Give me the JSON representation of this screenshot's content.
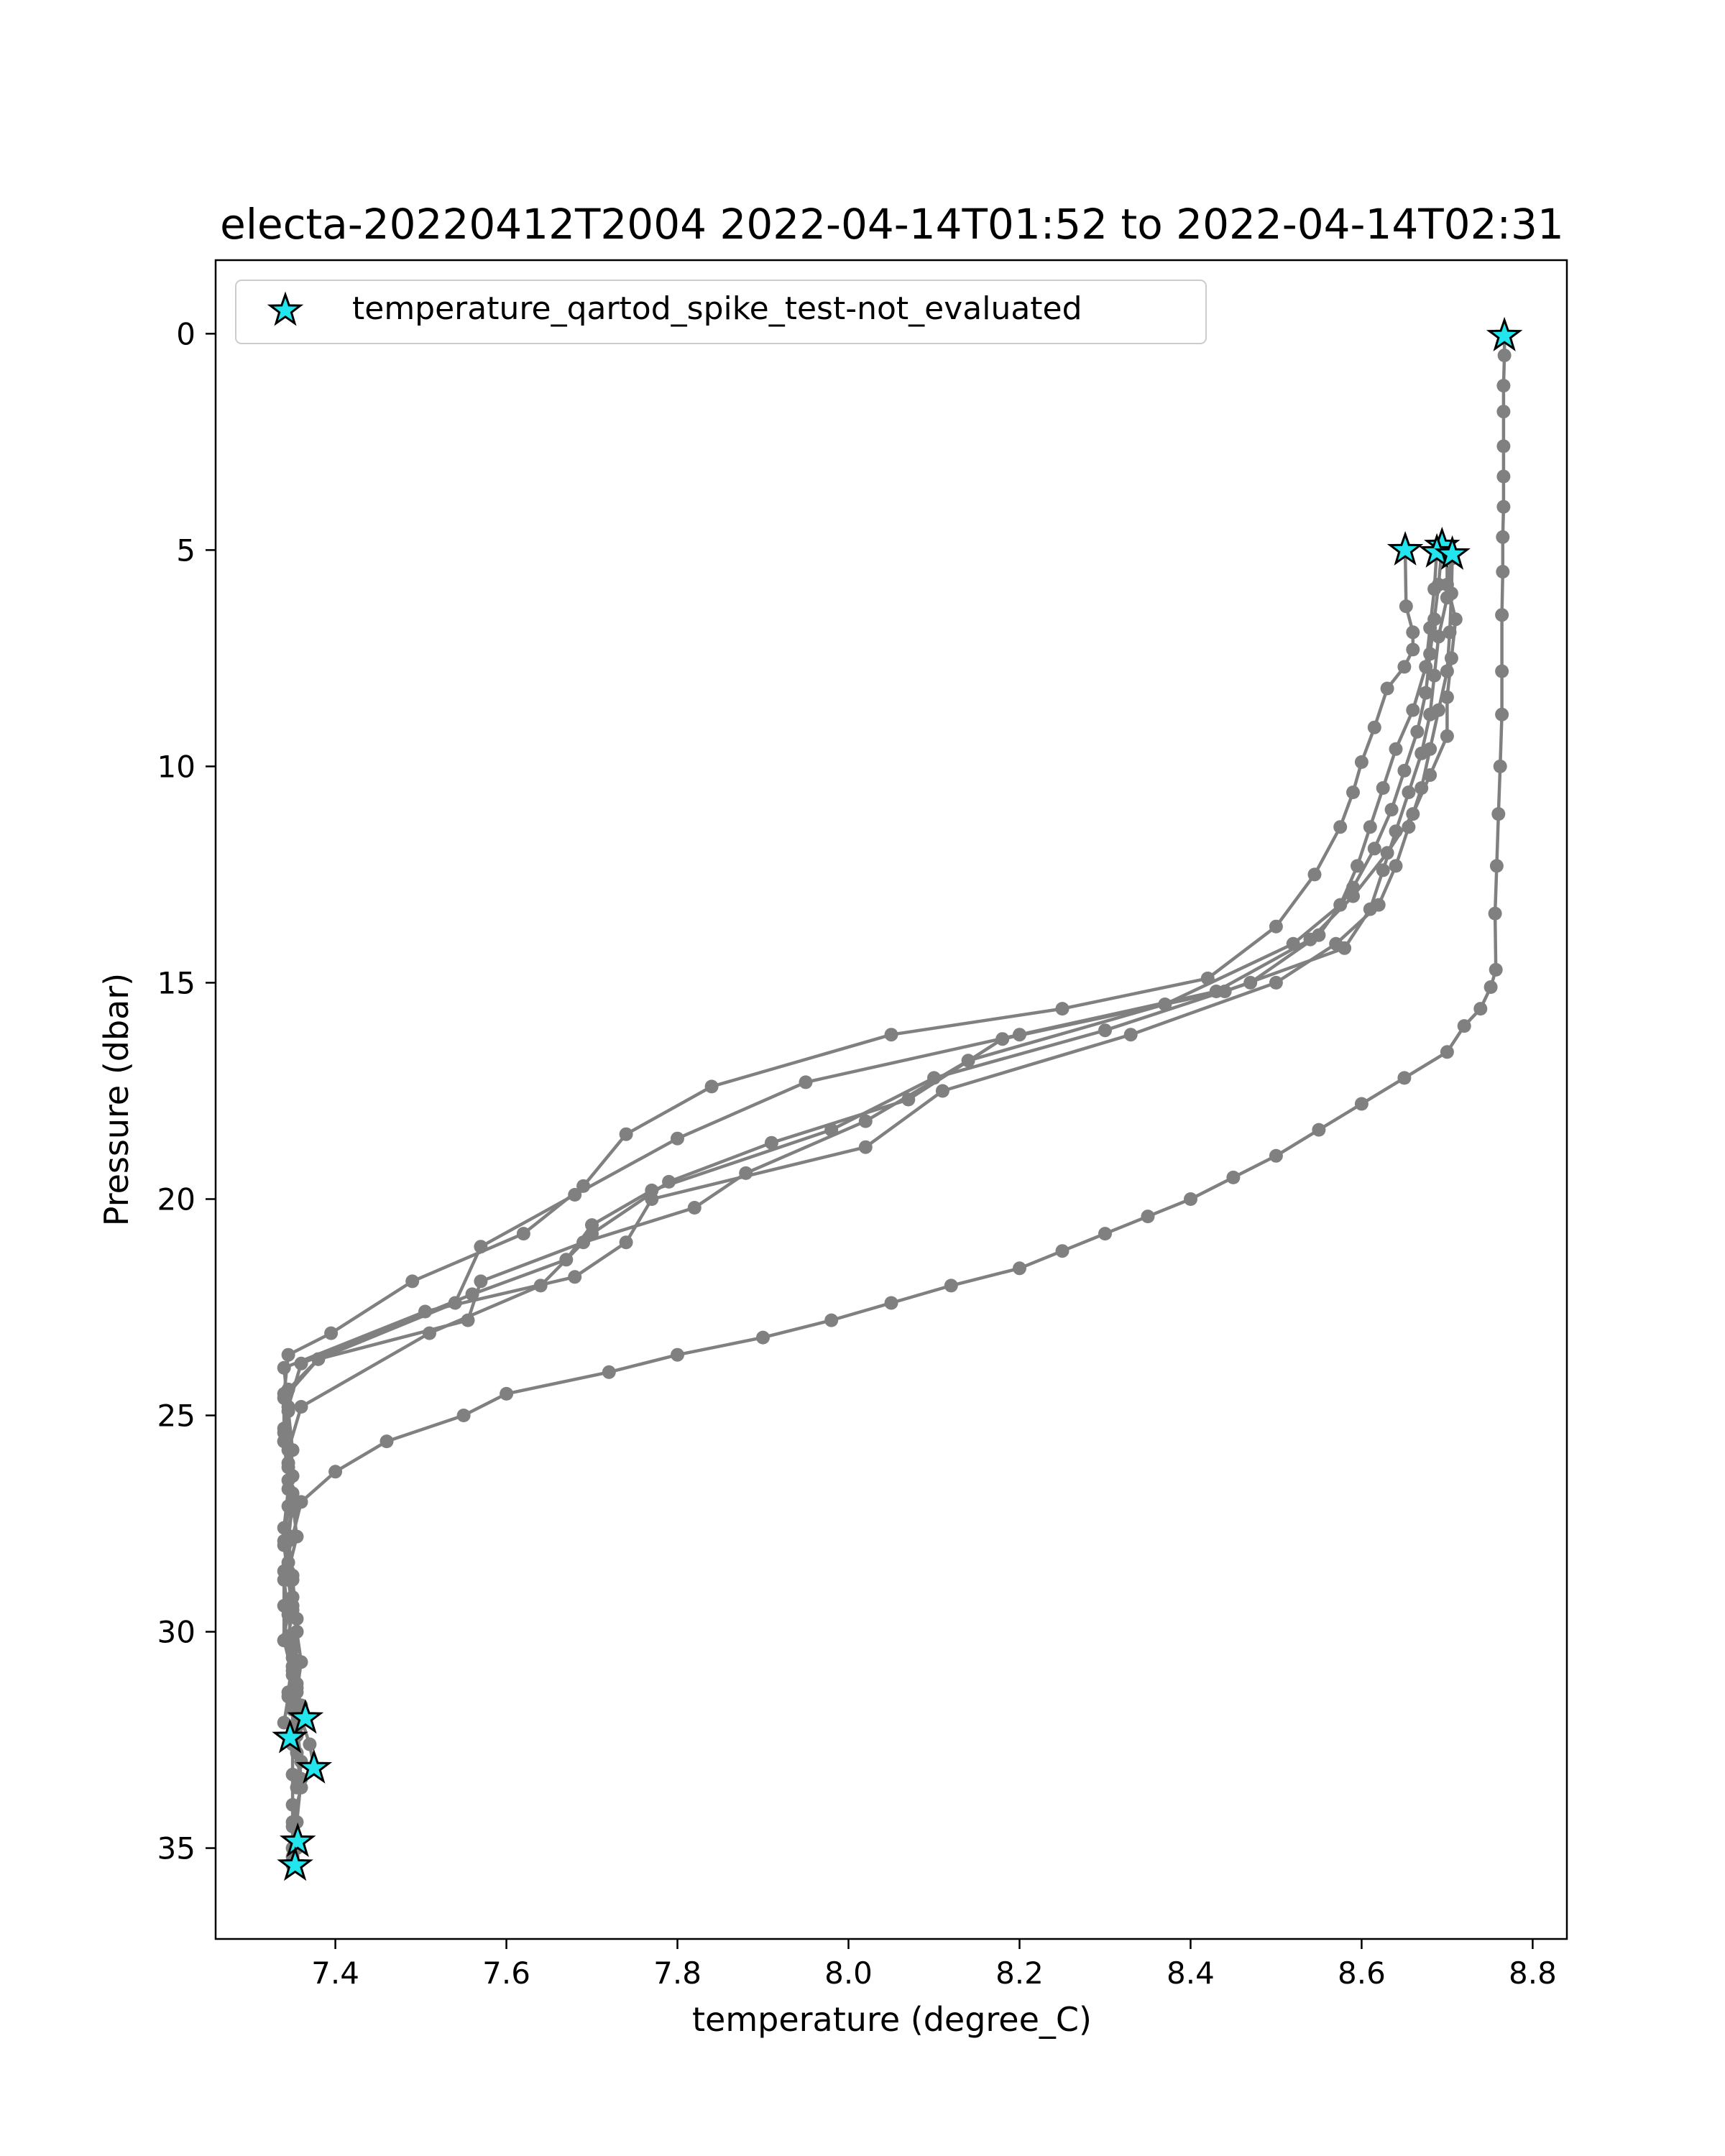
{
  "chart_data": {
    "type": "line",
    "title": "electa-20220412T2004 2022-04-14T01:52 to 2022-04-14T02:31",
    "xlabel": "temperature (degree_C)",
    "ylabel": "Pressure (dbar)",
    "xlim": [
      7.26,
      8.84
    ],
    "ylim": [
      37.1,
      -1.7
    ],
    "y_inverted": true,
    "x_ticks": [
      7.4,
      7.6,
      7.8,
      8.0,
      8.2,
      8.4,
      8.6,
      8.8
    ],
    "x_tick_labels": [
      "7.4",
      "7.6",
      "7.8",
      "8.0",
      "8.2",
      "8.4",
      "8.6",
      "8.8"
    ],
    "y_ticks": [
      0,
      5,
      10,
      15,
      20,
      25,
      30,
      35
    ],
    "y_tick_labels": [
      "0",
      "5",
      "10",
      "15",
      "20",
      "25",
      "30",
      "35"
    ],
    "grid": false,
    "legend_position": "top-left",
    "line_color": "#808080",
    "marker_color": "#808080",
    "flag_fill_color": "#22e5ee",
    "flag_edge_color": "#000000",
    "series": [
      {
        "x": [
          8.767,
          8.767,
          8.766,
          8.766,
          8.766,
          8.766,
          8.766,
          8.765,
          8.765,
          8.764,
          8.764,
          8.764,
          8.762,
          8.76,
          8.758,
          8.756,
          8.757,
          8.751,
          8.739,
          8.72,
          8.7,
          8.65,
          8.6,
          8.55,
          8.5,
          8.45,
          8.4,
          8.35,
          8.3,
          8.25,
          8.2,
          8.12,
          8.05,
          7.98,
          7.9,
          7.8,
          7.72,
          7.6,
          7.55,
          7.46,
          7.4,
          7.36,
          7.35,
          7.34,
          7.34,
          7.34,
          7.35,
          7.35,
          7.35,
          7.35,
          7.35,
          7.35,
          7.35,
          7.35,
          7.35
        ],
        "y": [
          0.05,
          0.5,
          1.2,
          1.8,
          2.6,
          3.3,
          4.0,
          4.7,
          5.5,
          6.5,
          7.8,
          8.8,
          10.0,
          11.1,
          12.3,
          13.4,
          14.7,
          15.1,
          15.6,
          16.0,
          16.6,
          17.2,
          17.8,
          18.4,
          19.0,
          19.5,
          20.0,
          20.4,
          20.8,
          21.2,
          21.6,
          22.0,
          22.4,
          22.8,
          23.2,
          23.6,
          24.0,
          24.5,
          25.0,
          25.6,
          26.3,
          27.0,
          27.8,
          28.6,
          29.4,
          30.2,
          31.0,
          31.8,
          32.6,
          33.3,
          34.0,
          34.5,
          35.0,
          35.2,
          35.4
        ]
      },
      {
        "x": [
          8.651,
          8.652,
          8.66,
          8.66,
          8.65,
          8.63,
          8.615,
          8.6,
          8.59,
          8.575,
          8.545,
          8.5,
          8.42,
          8.25,
          8.05,
          7.84,
          7.74,
          7.69,
          7.62,
          7.49,
          7.395,
          7.345,
          7.34,
          7.34,
          7.345,
          7.35,
          7.34,
          7.345,
          7.35,
          7.345,
          7.35,
          7.355,
          7.36,
          7.365
        ],
        "y": [
          5.0,
          6.3,
          6.9,
          7.3,
          7.7,
          8.2,
          9.1,
          9.9,
          10.6,
          11.4,
          12.5,
          13.7,
          14.9,
          15.6,
          16.2,
          17.4,
          18.5,
          19.7,
          20.8,
          21.9,
          23.1,
          23.6,
          24.5,
          25.6,
          26.5,
          27.2,
          28.0,
          28.8,
          29.5,
          30.1,
          30.8,
          31.3,
          31.7,
          32.0
        ]
      },
      {
        "x": [
          8.694,
          8.69,
          8.685,
          8.68,
          8.675,
          8.665,
          8.65,
          8.635,
          8.615,
          8.59,
          8.55,
          8.47,
          8.3,
          8.1,
          7.98,
          7.77,
          7.7,
          7.67,
          7.56,
          7.36,
          7.345,
          7.34,
          7.35,
          7.345,
          7.34,
          7.35,
          7.345,
          7.34,
          7.35,
          7.345,
          7.34,
          7.35
        ],
        "y": [
          4.9,
          5.8,
          6.6,
          7.4,
          8.3,
          9.2,
          10.1,
          11.0,
          11.9,
          12.8,
          13.9,
          15.0,
          16.1,
          17.2,
          18.4,
          19.8,
          20.6,
          21.4,
          22.2,
          23.8,
          24.8,
          25.6,
          26.4,
          27.1,
          27.9,
          28.7,
          29.4,
          30.2,
          30.9,
          31.5,
          32.1,
          32.45
        ]
      },
      {
        "x": [
          8.688,
          8.685,
          8.68,
          8.675,
          8.66,
          8.64,
          8.625,
          8.61,
          8.595,
          8.575,
          8.52,
          8.37,
          8.14,
          8.02,
          7.88,
          7.82,
          7.69,
          7.57,
          7.555,
          7.38,
          7.345,
          7.34,
          7.345,
          7.35,
          7.355,
          7.345,
          7.35,
          7.355,
          7.36,
          7.355,
          7.36,
          7.37,
          7.375
        ],
        "y": [
          5.0,
          5.9,
          6.8,
          7.7,
          8.7,
          9.6,
          10.5,
          11.4,
          12.3,
          13.2,
          14.1,
          15.5,
          16.8,
          18.2,
          19.4,
          20.2,
          21.0,
          21.9,
          22.8,
          23.7,
          24.4,
          25.3,
          26.1,
          27.0,
          27.8,
          28.6,
          29.4,
          30.0,
          30.7,
          31.4,
          32.0,
          32.6,
          33.15
        ]
      },
      {
        "x": [
          8.706,
          8.705,
          8.703,
          8.7,
          8.69,
          8.68,
          8.67,
          8.655,
          8.64,
          8.62,
          8.57,
          8.5,
          8.33,
          8.11,
          8.02,
          7.77,
          7.74,
          7.68,
          7.505,
          7.34,
          7.345,
          7.35,
          7.345,
          7.34,
          7.345,
          7.35,
          7.355,
          7.35,
          7.35,
          7.355,
          7.36,
          7.355,
          7.356
        ],
        "y": [
          5.1,
          6.0,
          6.9,
          7.8,
          8.7,
          9.6,
          10.5,
          11.4,
          12.3,
          13.2,
          14.1,
          15.0,
          16.2,
          17.5,
          18.8,
          20.0,
          21.0,
          21.8,
          22.6,
          23.9,
          24.9,
          25.8,
          26.7,
          27.6,
          28.4,
          29.2,
          30.0,
          30.8,
          31.6,
          32.4,
          33.4,
          34.4,
          34.85
        ]
      },
      {
        "x": [
          8.7,
          8.7,
          8.71,
          8.705,
          8.7,
          8.7,
          8.68,
          8.66,
          8.63,
          8.59,
          8.54,
          8.43,
          8.2,
          7.95,
          7.8,
          7.68,
          7.57,
          7.54,
          7.38,
          7.34,
          7.34,
          7.345,
          7.35,
          7.345,
          7.34,
          7.345,
          7.35,
          7.355,
          7.36,
          7.355,
          7.36,
          7.35,
          7.355,
          7.353
        ],
        "y": [
          5.0,
          5.8,
          6.6,
          7.5,
          8.4,
          9.3,
          10.2,
          11.1,
          12.0,
          13.0,
          14.0,
          15.2,
          16.2,
          17.3,
          18.6,
          19.9,
          21.1,
          22.4,
          23.7,
          24.6,
          25.4,
          26.2,
          27.0,
          27.9,
          28.8,
          29.6,
          30.4,
          31.2,
          32.0,
          32.8,
          33.6,
          34.4,
          35.0,
          35.4
        ]
      },
      {
        "x": [
          8.705,
          8.7,
          8.69,
          8.685,
          8.68,
          8.67,
          8.655,
          8.64,
          8.625,
          8.61,
          8.58,
          8.44,
          8.18,
          8.07,
          7.91,
          7.79,
          7.7,
          7.64,
          7.51,
          7.36,
          7.345,
          7.35,
          7.345,
          7.35,
          7.355,
          7.35,
          7.345,
          7.355,
          7.36,
          7.355
        ],
        "y": [
          5.2,
          6.1,
          7.0,
          7.9,
          8.8,
          9.7,
          10.6,
          11.5,
          12.4,
          13.3,
          14.2,
          15.2,
          16.3,
          17.7,
          18.7,
          19.6,
          20.8,
          22.0,
          23.1,
          24.8,
          25.8,
          26.8,
          27.8,
          28.8,
          29.7,
          30.6,
          31.4,
          32.2,
          33.0,
          33.6
        ]
      }
    ],
    "flags": {
      "name": "temperature_qartod_spike_test-not_evaluated",
      "x": [
        8.767,
        8.651,
        8.694,
        8.688,
        8.706,
        7.365,
        7.347,
        7.375,
        7.356,
        7.353
      ],
      "y": [
        0.05,
        5.0,
        4.9,
        5.05,
        5.1,
        32.0,
        32.45,
        33.15,
        34.85,
        35.4
      ]
    }
  }
}
